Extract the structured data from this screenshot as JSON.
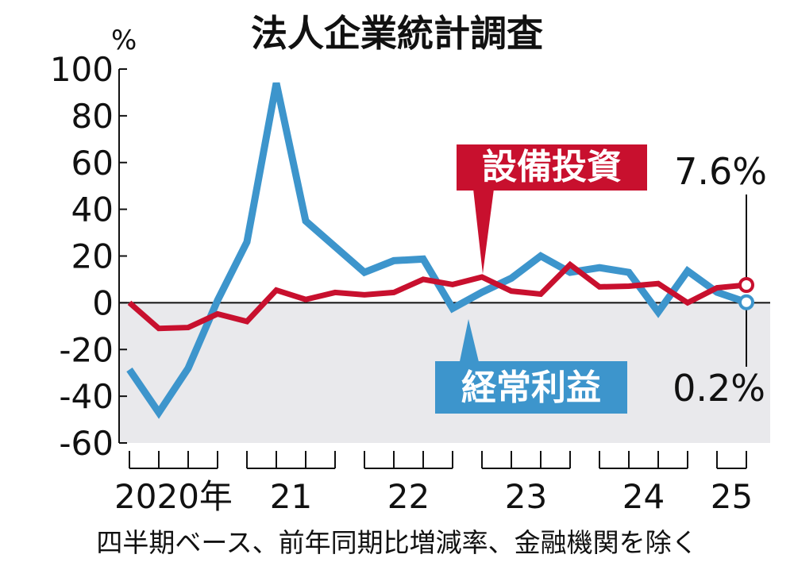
{
  "chart_data": {
    "type": "line",
    "title": "法人企業統計調査",
    "y_unit": "%",
    "categories": [
      "2020年",
      null,
      null,
      null,
      "21",
      null,
      null,
      null,
      "22",
      null,
      null,
      null,
      "23",
      null,
      null,
      null,
      "24",
      null,
      null,
      null,
      "25",
      null
    ],
    "series": [
      {
        "name": "設備投資",
        "color": "#c8102e",
        "values": [
          0,
          -11,
          -10.6,
          -4.8,
          -8,
          5.4,
          1.4,
          4.4,
          3.4,
          4.4,
          10,
          7.8,
          11,
          5,
          3.7,
          16.3,
          6.8,
          7.1,
          8.2,
          0,
          6.4,
          7.6
        ],
        "end_label": "7.6%"
      },
      {
        "name": "経常利益",
        "color": "#3d95cc",
        "values": [
          -28.6,
          -47,
          -28,
          1,
          26,
          94,
          35,
          24,
          13,
          18,
          18.7,
          -2.4,
          4.5,
          10.5,
          20,
          13,
          15,
          13,
          -4,
          13.6,
          4.5,
          0.2
        ],
        "end_label": "0.2%"
      }
    ],
    "ylim": [
      -60,
      100
    ],
    "yticks": [
      -60,
      -40,
      -20,
      0,
      20,
      40,
      60,
      80,
      100
    ],
    "note": "四半期ベース、前年同期比増減率、金融機関を除く"
  }
}
